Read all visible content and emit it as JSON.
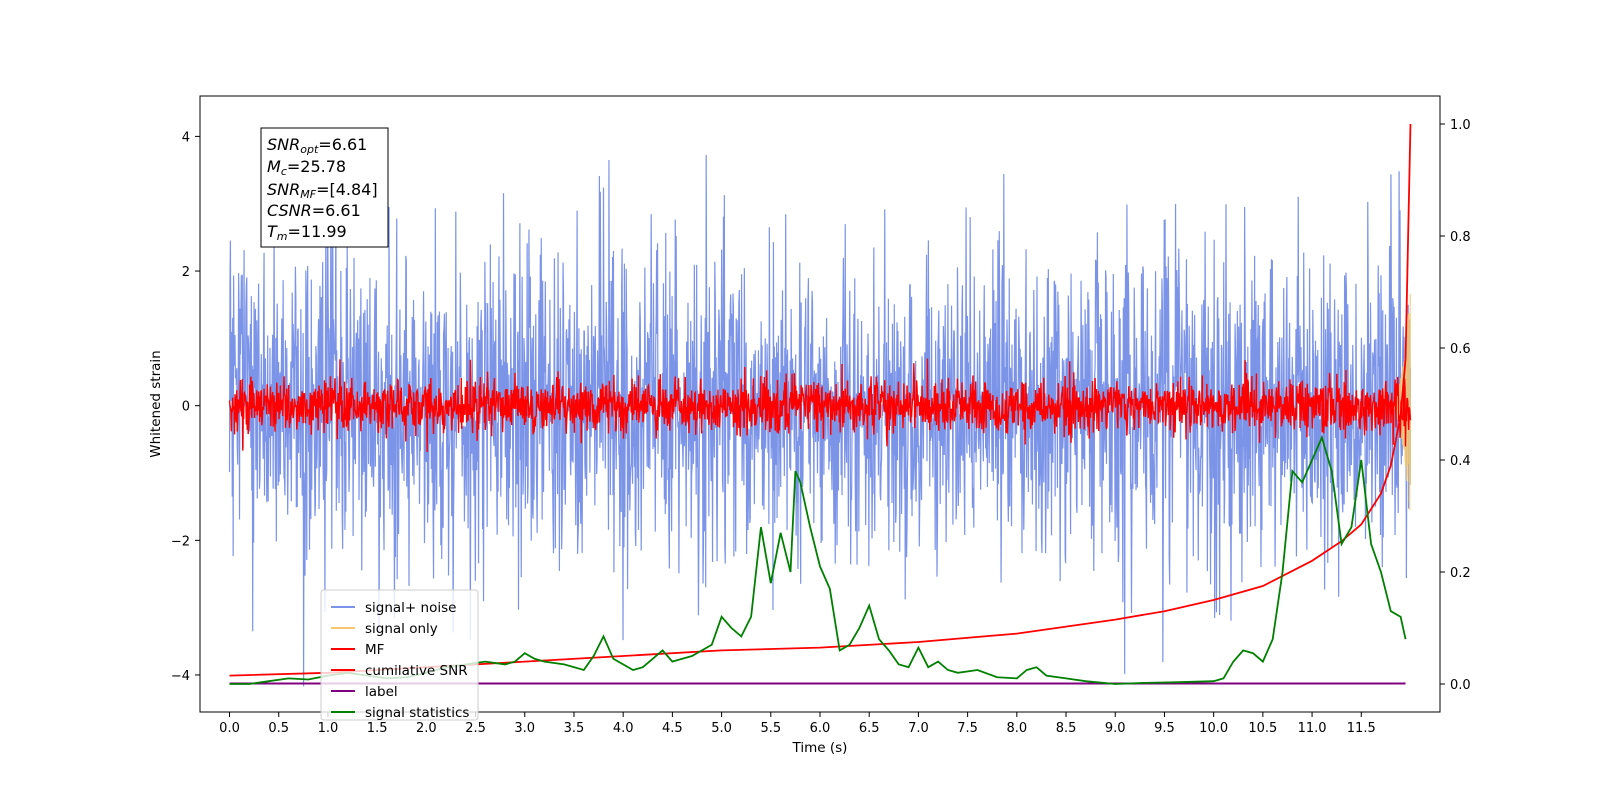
{
  "chart_data": {
    "type": "line",
    "xlabel": "Time (s)",
    "ylabel": "Whitened strain",
    "xlim": [
      -0.3,
      12.3
    ],
    "ylim": [
      -4.55,
      4.6
    ],
    "ylim_right": [
      -0.05,
      1.05
    ],
    "x_ticks": [
      "0.0",
      "0.5",
      "1.0",
      "1.5",
      "2.0",
      "2.5",
      "3.0",
      "3.5",
      "4.0",
      "4.5",
      "5.0",
      "5.5",
      "6.0",
      "6.5",
      "7.0",
      "7.5",
      "8.0",
      "8.5",
      "9.0",
      "9.5",
      "10.0",
      "10.5",
      "11.0",
      "11.5"
    ],
    "y_ticks": [
      "-4",
      "-2",
      "0",
      "2",
      "4"
    ],
    "y_right_ticks": [
      "0.0",
      "0.2",
      "0.4",
      "0.6",
      "0.8",
      "1.0"
    ],
    "legend_position": "lower-left",
    "annotation": {
      "snr_opt": {
        "base": "SNR",
        "sub": "opt",
        "value": "=6.61"
      },
      "mc": {
        "base": "M",
        "sub": "c",
        "value": "=25.78"
      },
      "snr_mf": {
        "base": "SNR",
        "sub": "MF",
        "value": "=[4.84]"
      },
      "csnr": {
        "base": "CSNR",
        "value": "=6.61"
      },
      "tm": {
        "base": "T",
        "sub": "m",
        "value": "=11.99"
      }
    },
    "series": [
      {
        "name": "signal+ noise",
        "color": "#7b94e8",
        "axis": "left",
        "kind": "noise",
        "amplitude_std": 1.15,
        "x_range": [
          0.0,
          12.0
        ]
      },
      {
        "name": "signal only",
        "color": "#f5c86e",
        "axis": "left",
        "kind": "chirp",
        "x_range": [
          11.8,
          12.0
        ],
        "peak": 1.7
      },
      {
        "name": "MF",
        "color": "#ff0000",
        "axis": "left",
        "kind": "noise",
        "amplitude_std": 0.2,
        "x_range": [
          0.0,
          12.0
        ]
      },
      {
        "name": "cumilative SNR",
        "color": "#ff0000",
        "axis": "right",
        "x": [
          0.0,
          1.0,
          2.0,
          3.0,
          4.0,
          5.0,
          6.0,
          7.0,
          8.0,
          9.0,
          9.5,
          10.0,
          10.5,
          11.0,
          11.3,
          11.5,
          11.7,
          11.8,
          11.9,
          11.95,
          12.0
        ],
        "y": [
          0.015,
          0.02,
          0.03,
          0.04,
          0.05,
          0.06,
          0.065,
          0.075,
          0.09,
          0.115,
          0.13,
          0.15,
          0.175,
          0.22,
          0.255,
          0.285,
          0.34,
          0.39,
          0.48,
          0.58,
          1.0
        ]
      },
      {
        "name": "label",
        "color": "#800080",
        "axis": "right",
        "x": [
          0.0,
          11.95
        ],
        "y": [
          0.001,
          0.001
        ]
      },
      {
        "name": "signal statistics",
        "color": "#008000",
        "axis": "right",
        "x": [
          0.0,
          0.2,
          0.4,
          0.6,
          0.8,
          1.0,
          1.2,
          1.4,
          1.6,
          1.8,
          2.0,
          2.2,
          2.4,
          2.6,
          2.8,
          2.9,
          3.0,
          3.1,
          3.2,
          3.4,
          3.6,
          3.7,
          3.8,
          3.9,
          4.0,
          4.1,
          4.2,
          4.3,
          4.4,
          4.5,
          4.6,
          4.7,
          4.8,
          4.9,
          5.0,
          5.1,
          5.2,
          5.3,
          5.4,
          5.5,
          5.6,
          5.7,
          5.75,
          5.8,
          5.9,
          6.0,
          6.1,
          6.2,
          6.3,
          6.4,
          6.5,
          6.6,
          6.7,
          6.8,
          6.9,
          7.0,
          7.1,
          7.2,
          7.3,
          7.4,
          7.6,
          7.8,
          8.0,
          8.1,
          8.2,
          8.3,
          8.5,
          8.7,
          9.0,
          9.3,
          9.6,
          10.0,
          10.1,
          10.2,
          10.3,
          10.4,
          10.5,
          10.6,
          10.7,
          10.8,
          10.9,
          11.0,
          11.1,
          11.2,
          11.3,
          11.4,
          11.5,
          11.6,
          11.7,
          11.8,
          11.9,
          11.95
        ],
        "y": [
          0.0,
          0.0,
          0.005,
          0.01,
          0.008,
          0.015,
          0.02,
          0.015,
          0.01,
          0.012,
          0.02,
          0.03,
          0.035,
          0.04,
          0.035,
          0.04,
          0.055,
          0.045,
          0.04,
          0.035,
          0.025,
          0.05,
          0.085,
          0.045,
          0.035,
          0.025,
          0.03,
          0.045,
          0.06,
          0.04,
          0.045,
          0.05,
          0.06,
          0.07,
          0.12,
          0.1,
          0.085,
          0.12,
          0.28,
          0.18,
          0.27,
          0.2,
          0.38,
          0.36,
          0.28,
          0.21,
          0.17,
          0.06,
          0.07,
          0.1,
          0.14,
          0.08,
          0.06,
          0.035,
          0.03,
          0.065,
          0.03,
          0.04,
          0.025,
          0.02,
          0.025,
          0.012,
          0.01,
          0.025,
          0.03,
          0.015,
          0.01,
          0.005,
          0.0,
          0.002,
          0.003,
          0.005,
          0.01,
          0.04,
          0.06,
          0.055,
          0.04,
          0.08,
          0.2,
          0.38,
          0.36,
          0.4,
          0.44,
          0.38,
          0.25,
          0.28,
          0.4,
          0.25,
          0.2,
          0.13,
          0.12,
          0.08
        ]
      }
    ]
  }
}
